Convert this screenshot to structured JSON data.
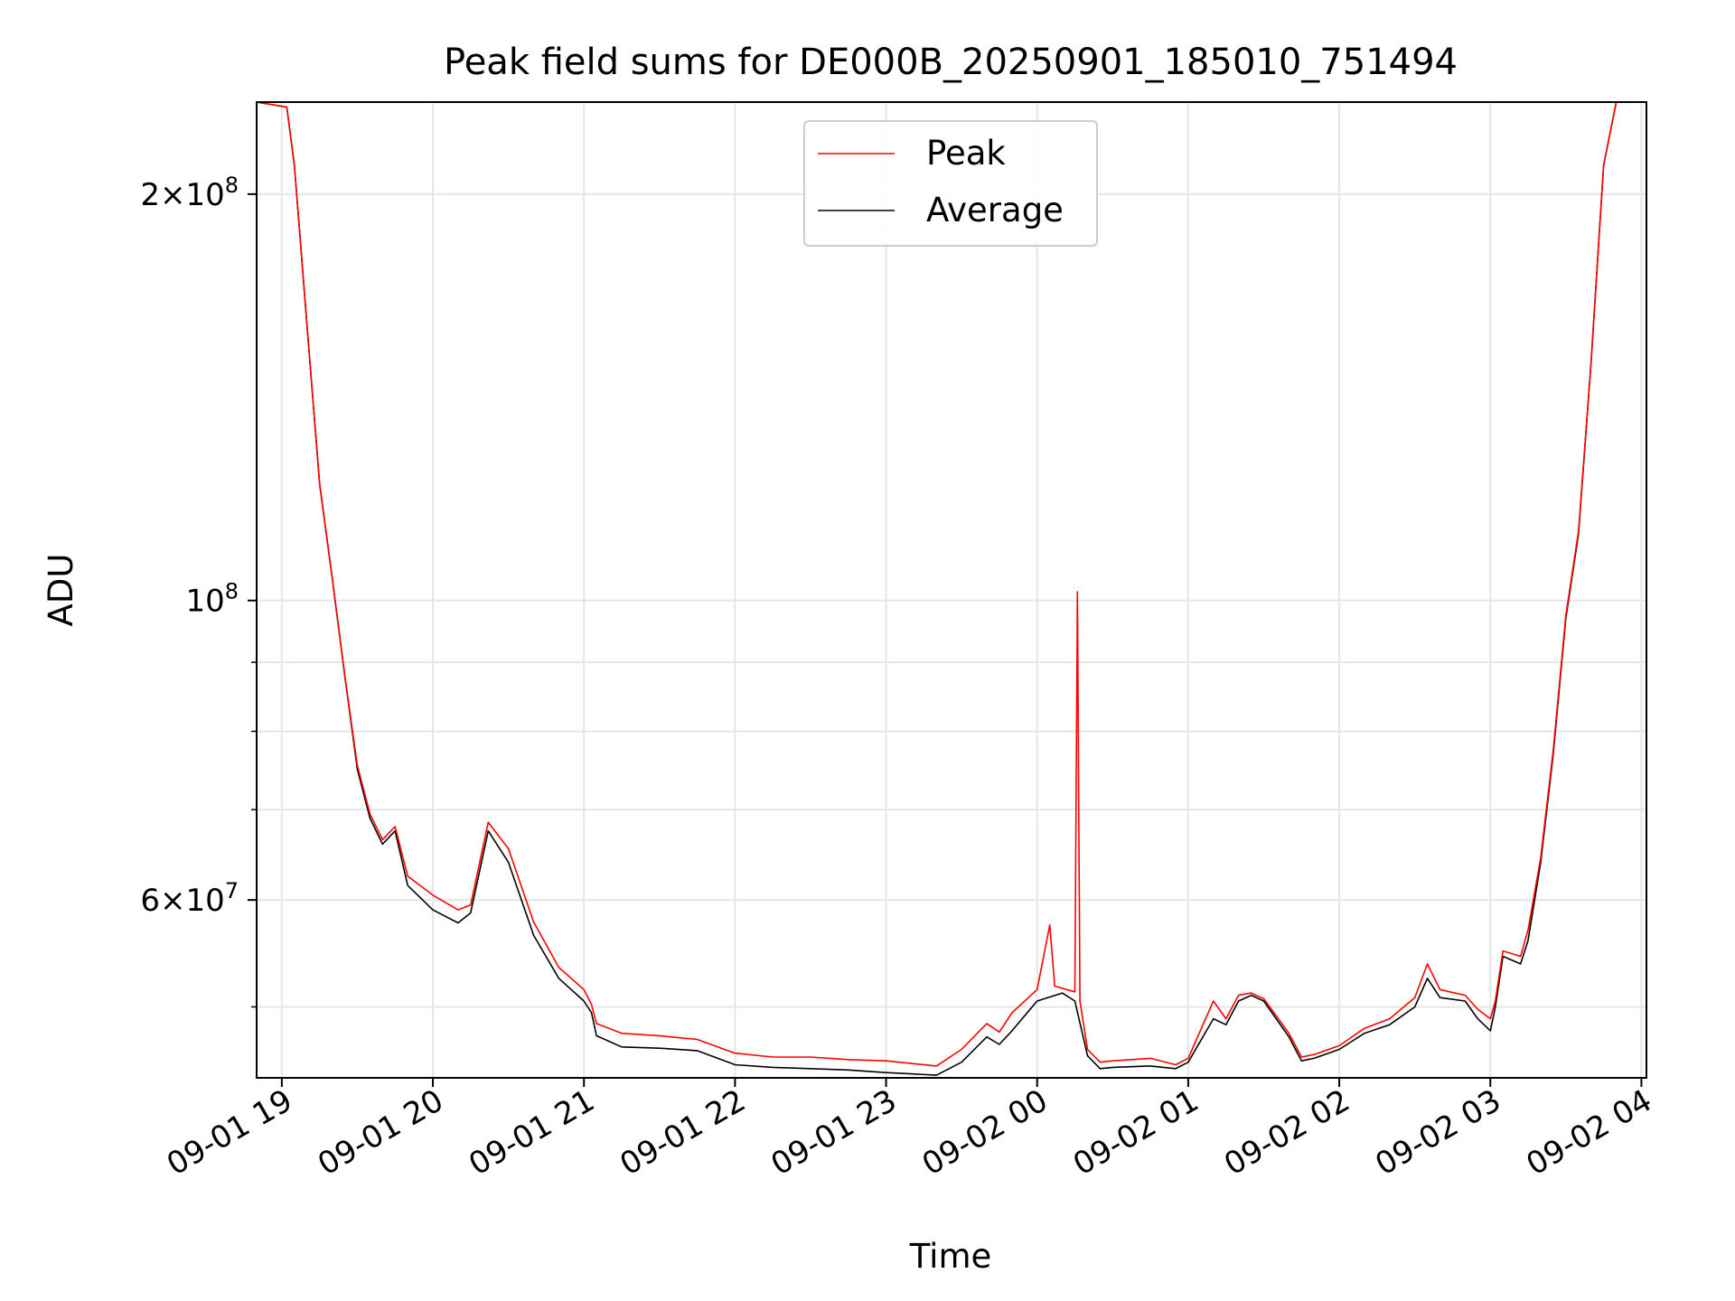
{
  "chart_data": {
    "type": "line",
    "title": "Peak field sums for DE000B_20250901_185010_751494",
    "xlabel": "Time",
    "ylabel": "ADU",
    "y_scale": "log",
    "grid": true,
    "legend_position": "top-center",
    "xlim": [
      "2025-09-01 18:50",
      "2025-09-02 04:02"
    ],
    "ylim": [
      44300000,
      234000000
    ],
    "x_ticks": [
      {
        "t": "2025-09-01 19:00",
        "label": "09-01 19"
      },
      {
        "t": "2025-09-01 20:00",
        "label": "09-01 20"
      },
      {
        "t": "2025-09-01 21:00",
        "label": "09-01 21"
      },
      {
        "t": "2025-09-01 22:00",
        "label": "09-01 22"
      },
      {
        "t": "2025-09-01 23:00",
        "label": "09-01 23"
      },
      {
        "t": "2025-09-02 00:00",
        "label": "09-02 00"
      },
      {
        "t": "2025-09-02 01:00",
        "label": "09-02 01"
      },
      {
        "t": "2025-09-02 02:00",
        "label": "09-02 02"
      },
      {
        "t": "2025-09-02 03:00",
        "label": "09-02 03"
      },
      {
        "t": "2025-09-02 04:00",
        "label": "09-02 04"
      }
    ],
    "y_major_ticks": [
      {
        "value": 60000000,
        "mant": "6",
        "exp": "7"
      },
      {
        "value": 100000000,
        "mant": "",
        "exp": "8"
      },
      {
        "value": 200000000,
        "mant": "2",
        "exp": "8"
      }
    ],
    "y_minor_ticks": [
      50000000,
      70000000,
      80000000,
      90000000
    ],
    "series": [
      {
        "name": "Average",
        "color": "#000000",
        "points": [
          [
            "2025-09-01 18:50",
            234000000
          ],
          [
            "2025-09-01 19:02",
            232000000
          ],
          [
            "2025-09-01 19:05",
            210000000
          ],
          [
            "2025-09-01 19:10",
            160000000
          ],
          [
            "2025-09-01 19:15",
            122000000
          ],
          [
            "2025-09-01 19:20",
            104000000
          ],
          [
            "2025-09-01 19:25",
            88000000
          ],
          [
            "2025-09-01 19:30",
            75000000
          ],
          [
            "2025-09-01 19:35",
            69000000
          ],
          [
            "2025-09-01 19:40",
            66000000
          ],
          [
            "2025-09-01 19:45",
            67500000
          ],
          [
            "2025-09-01 19:50",
            61500000
          ],
          [
            "2025-09-01 20:00",
            59000000
          ],
          [
            "2025-09-01 20:10",
            57700000
          ],
          [
            "2025-09-01 20:15",
            58700000
          ],
          [
            "2025-09-01 20:22",
            67500000
          ],
          [
            "2025-09-01 20:30",
            64000000
          ],
          [
            "2025-09-01 20:40",
            56500000
          ],
          [
            "2025-09-01 20:50",
            52500000
          ],
          [
            "2025-09-01 21:00",
            50500000
          ],
          [
            "2025-09-01 21:03",
            49500000
          ],
          [
            "2025-09-01 21:05",
            47600000
          ],
          [
            "2025-09-01 21:15",
            46700000
          ],
          [
            "2025-09-01 21:30",
            46600000
          ],
          [
            "2025-09-01 21:45",
            46400000
          ],
          [
            "2025-09-01 22:00",
            45300000
          ],
          [
            "2025-09-01 22:15",
            45100000
          ],
          [
            "2025-09-01 22:30",
            45000000
          ],
          [
            "2025-09-01 22:45",
            44900000
          ],
          [
            "2025-09-01 23:00",
            44700000
          ],
          [
            "2025-09-01 23:10",
            44600000
          ],
          [
            "2025-09-01 23:20",
            44500000
          ],
          [
            "2025-09-01 23:30",
            45500000
          ],
          [
            "2025-09-01 23:40",
            47500000
          ],
          [
            "2025-09-01 23:45",
            46900000
          ],
          [
            "2025-09-01 23:50",
            48000000
          ],
          [
            "2025-09-02 00:00",
            50500000
          ],
          [
            "2025-09-02 00:10",
            51200000
          ],
          [
            "2025-09-02 00:15",
            50500000
          ],
          [
            "2025-09-02 00:20",
            46000000
          ],
          [
            "2025-09-02 00:25",
            45000000
          ],
          [
            "2025-09-02 00:30",
            45100000
          ],
          [
            "2025-09-02 00:45",
            45200000
          ],
          [
            "2025-09-02 00:55",
            45000000
          ],
          [
            "2025-09-02 01:00",
            45500000
          ],
          [
            "2025-09-02 01:10",
            49000000
          ],
          [
            "2025-09-02 01:15",
            48500000
          ],
          [
            "2025-09-02 01:20",
            50500000
          ],
          [
            "2025-09-02 01:25",
            51000000
          ],
          [
            "2025-09-02 01:30",
            50500000
          ],
          [
            "2025-09-02 01:40",
            47500000
          ],
          [
            "2025-09-02 01:45",
            45600000
          ],
          [
            "2025-09-02 01:50",
            45800000
          ],
          [
            "2025-09-02 02:00",
            46500000
          ],
          [
            "2025-09-02 02:10",
            47800000
          ],
          [
            "2025-09-02 02:20",
            48500000
          ],
          [
            "2025-09-02 02:30",
            50000000
          ],
          [
            "2025-09-02 02:35",
            52500000
          ],
          [
            "2025-09-02 02:40",
            50800000
          ],
          [
            "2025-09-02 02:50",
            50500000
          ],
          [
            "2025-09-02 02:55",
            49000000
          ],
          [
            "2025-09-02 03:00",
            48000000
          ],
          [
            "2025-09-02 03:02",
            50000000
          ],
          [
            "2025-09-02 03:05",
            54500000
          ],
          [
            "2025-09-02 03:12",
            53800000
          ],
          [
            "2025-09-02 03:15",
            56000000
          ],
          [
            "2025-09-02 03:20",
            64000000
          ],
          [
            "2025-09-02 03:25",
            77000000
          ],
          [
            "2025-09-02 03:30",
            97000000
          ],
          [
            "2025-09-02 03:35",
            112000000
          ],
          [
            "2025-09-02 03:40",
            150000000
          ],
          [
            "2025-09-02 03:45",
            210000000
          ],
          [
            "2025-09-02 03:50",
            234000000
          ]
        ]
      },
      {
        "name": "Peak",
        "color": "#ff0000",
        "points": [
          [
            "2025-09-01 18:50",
            234000000
          ],
          [
            "2025-09-01 19:02",
            232000000
          ],
          [
            "2025-09-01 19:05",
            210000000
          ],
          [
            "2025-09-01 19:10",
            160000000
          ],
          [
            "2025-09-01 19:15",
            122000000
          ],
          [
            "2025-09-01 19:20",
            104000000
          ],
          [
            "2025-09-01 19:25",
            88000000
          ],
          [
            "2025-09-01 19:30",
            75500000
          ],
          [
            "2025-09-01 19:35",
            69500000
          ],
          [
            "2025-09-01 19:40",
            66500000
          ],
          [
            "2025-09-01 19:45",
            68000000
          ],
          [
            "2025-09-01 19:50",
            62500000
          ],
          [
            "2025-09-01 20:00",
            60500000
          ],
          [
            "2025-09-01 20:10",
            59000000
          ],
          [
            "2025-09-01 20:15",
            59500000
          ],
          [
            "2025-09-01 20:22",
            68500000
          ],
          [
            "2025-09-01 20:30",
            65500000
          ],
          [
            "2025-09-01 20:40",
            57800000
          ],
          [
            "2025-09-01 20:50",
            53500000
          ],
          [
            "2025-09-01 21:00",
            51500000
          ],
          [
            "2025-09-01 21:03",
            50200000
          ],
          [
            "2025-09-01 21:05",
            48600000
          ],
          [
            "2025-09-01 21:15",
            47800000
          ],
          [
            "2025-09-01 21:30",
            47600000
          ],
          [
            "2025-09-01 21:45",
            47300000
          ],
          [
            "2025-09-01 22:00",
            46200000
          ],
          [
            "2025-09-01 22:15",
            45900000
          ],
          [
            "2025-09-01 22:30",
            45900000
          ],
          [
            "2025-09-01 22:45",
            45700000
          ],
          [
            "2025-09-01 23:00",
            45600000
          ],
          [
            "2025-09-01 23:10",
            45400000
          ],
          [
            "2025-09-01 23:20",
            45200000
          ],
          [
            "2025-09-01 23:30",
            46500000
          ],
          [
            "2025-09-01 23:40",
            48600000
          ],
          [
            "2025-09-01 23:45",
            47900000
          ],
          [
            "2025-09-01 23:50",
            49500000
          ],
          [
            "2025-09-02 00:00",
            51500000
          ],
          [
            "2025-09-02 00:05",
            57500000
          ],
          [
            "2025-09-02 00:07",
            51800000
          ],
          [
            "2025-09-02 00:15",
            51300000
          ],
          [
            "2025-09-02 00:16",
            101500000
          ],
          [
            "2025-09-02 00:17",
            50500000
          ],
          [
            "2025-09-02 00:20",
            46500000
          ],
          [
            "2025-09-02 00:25",
            45500000
          ],
          [
            "2025-09-02 00:30",
            45600000
          ],
          [
            "2025-09-02 00:45",
            45800000
          ],
          [
            "2025-09-02 00:55",
            45300000
          ],
          [
            "2025-09-02 01:00",
            45800000
          ],
          [
            "2025-09-02 01:10",
            50500000
          ],
          [
            "2025-09-02 01:15",
            49000000
          ],
          [
            "2025-09-02 01:20",
            51000000
          ],
          [
            "2025-09-02 01:25",
            51200000
          ],
          [
            "2025-09-02 01:30",
            50700000
          ],
          [
            "2025-09-02 01:40",
            47800000
          ],
          [
            "2025-09-02 01:45",
            45900000
          ],
          [
            "2025-09-02 01:50",
            46100000
          ],
          [
            "2025-09-02 02:00",
            46800000
          ],
          [
            "2025-09-02 02:10",
            48200000
          ],
          [
            "2025-09-02 02:20",
            49000000
          ],
          [
            "2025-09-02 02:30",
            50800000
          ],
          [
            "2025-09-02 02:35",
            53800000
          ],
          [
            "2025-09-02 02:40",
            51500000
          ],
          [
            "2025-09-02 02:50",
            51000000
          ],
          [
            "2025-09-02 02:55",
            49800000
          ],
          [
            "2025-09-02 03:00",
            49000000
          ],
          [
            "2025-09-02 03:02",
            50500000
          ],
          [
            "2025-09-02 03:05",
            55000000
          ],
          [
            "2025-09-02 03:12",
            54500000
          ],
          [
            "2025-09-02 03:15",
            57000000
          ],
          [
            "2025-09-02 03:20",
            64500000
          ],
          [
            "2025-09-02 03:25",
            77500000
          ],
          [
            "2025-09-02 03:30",
            97500000
          ],
          [
            "2025-09-02 03:35",
            112500000
          ],
          [
            "2025-09-02 03:40",
            150000000
          ],
          [
            "2025-09-02 03:45",
            210000000
          ],
          [
            "2025-09-02 03:50",
            234000000
          ]
        ]
      }
    ],
    "legend": [
      {
        "name": "Peak",
        "color": "#ff0000"
      },
      {
        "name": "Average",
        "color": "#000000"
      }
    ]
  }
}
